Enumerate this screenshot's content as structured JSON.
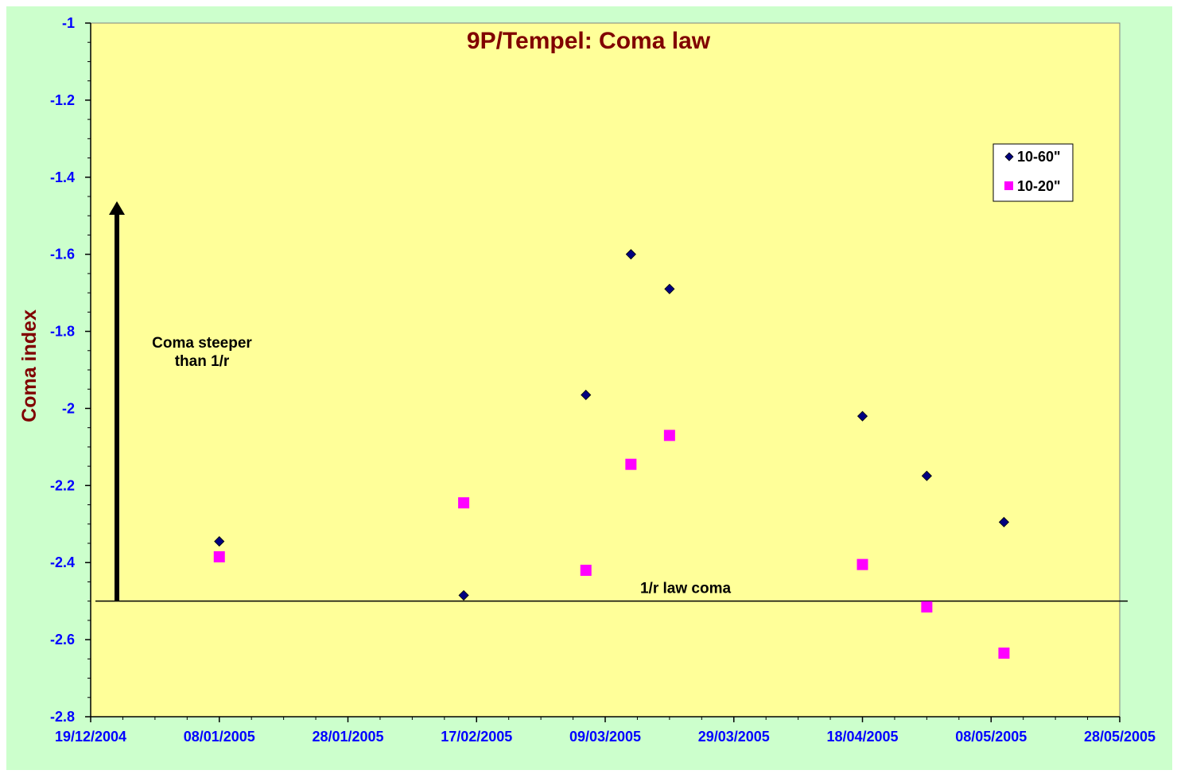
{
  "chart_data": {
    "type": "scatter",
    "title": "9P/Tempel: Coma law",
    "xlabel": "",
    "ylabel": "Coma index",
    "x_axis": {
      "type": "date",
      "range": [
        "19/12/2004",
        "28/05/2005"
      ],
      "tick_labels": [
        "19/12/2004",
        "08/01/2005",
        "28/01/2005",
        "17/02/2005",
        "09/03/2005",
        "29/03/2005",
        "18/04/2005",
        "08/05/2005",
        "28/05/2005"
      ]
    },
    "ylim": [
      -2.8,
      -1
    ],
    "y_tick_labels": [
      "-1",
      "-1.2",
      "-1.4",
      "-1.6",
      "-1.8",
      "-2",
      "-2.2",
      "-2.4",
      "-2.6",
      "-2.8"
    ],
    "y_ticks": [
      -1,
      -1.2,
      -1.4,
      -1.6,
      -1.8,
      -2,
      -2.2,
      -2.4,
      -2.6,
      -2.8
    ],
    "grid": false,
    "legend_position": "top-right",
    "series": [
      {
        "name": "10-60\"",
        "marker": "diamond",
        "color": "#000080",
        "points": [
          {
            "x": "08/01/2005",
            "y": -2.345
          },
          {
            "x": "15/02/2005",
            "y": -2.485
          },
          {
            "x": "06/03/2005",
            "y": -1.965
          },
          {
            "x": "13/03/2005",
            "y": -1.6
          },
          {
            "x": "19/03/2005",
            "y": -1.69
          },
          {
            "x": "18/04/2005",
            "y": -2.02
          },
          {
            "x": "28/04/2005",
            "y": -2.175
          },
          {
            "x": "10/05/2005",
            "y": -2.295
          }
        ]
      },
      {
        "name": "10-20\"",
        "marker": "square",
        "color": "#ff00ff",
        "points": [
          {
            "x": "08/01/2005",
            "y": -2.385
          },
          {
            "x": "15/02/2005",
            "y": -2.245
          },
          {
            "x": "06/03/2005",
            "y": -2.42
          },
          {
            "x": "13/03/2005",
            "y": -2.145
          },
          {
            "x": "19/03/2005",
            "y": -2.07
          },
          {
            "x": "18/04/2005",
            "y": -2.405
          },
          {
            "x": "28/04/2005",
            "y": -2.515
          },
          {
            "x": "10/05/2005",
            "y": -2.635
          }
        ]
      }
    ],
    "reference_line": {
      "y": -2.5,
      "label": "1/r law coma"
    },
    "arrow_annotation": {
      "label_line1": "Coma steeper",
      "label_line2": "than 1/r"
    },
    "colors": {
      "outer_background": "#ccffcc",
      "plot_background": "#ffff99",
      "tick_labels": "#0000ff",
      "title": "#800000"
    }
  }
}
